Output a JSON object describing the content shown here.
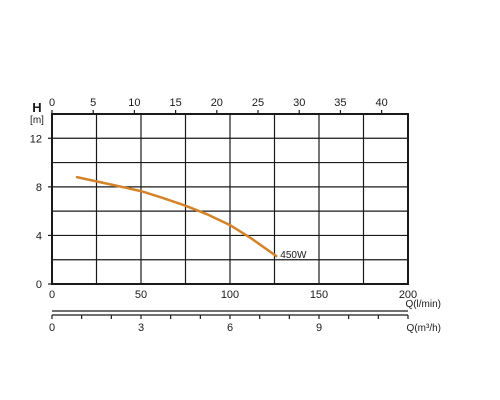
{
  "chart_data": {
    "type": "line",
    "y_axis": {
      "title": "H",
      "unit": "[m]",
      "range": [
        0,
        14
      ],
      "ticks": [
        0,
        4,
        8,
        12
      ],
      "grid_step": 2
    },
    "x_axis_lpm": {
      "title": "Q(l/min)",
      "range": [
        0,
        200
      ],
      "ticks": [
        0,
        50,
        100,
        150,
        200
      ],
      "grid_step": 25
    },
    "x_axis_top_m3h": {
      "range": [
        0,
        43.2
      ],
      "ticks": [
        0,
        5,
        10,
        15,
        20,
        25,
        30,
        35,
        40
      ]
    },
    "x_axis_bottom_m3h": {
      "title": "Q(m³/h)",
      "range": [
        0,
        12
      ],
      "ticks": [
        0,
        3,
        6,
        9
      ],
      "minor_step": 1
    },
    "series": [
      {
        "name": "450W",
        "x": [
          14,
          25,
          36,
          50,
          62,
          75,
          87,
          100,
          112,
          126
        ],
        "y": [
          8.8,
          8.45,
          8.1,
          7.65,
          7.1,
          6.45,
          5.75,
          4.85,
          3.75,
          2.3
        ]
      }
    ],
    "grid": true,
    "colors": {
      "curve": "#d4832a",
      "grid": "#1a1a1a"
    }
  }
}
